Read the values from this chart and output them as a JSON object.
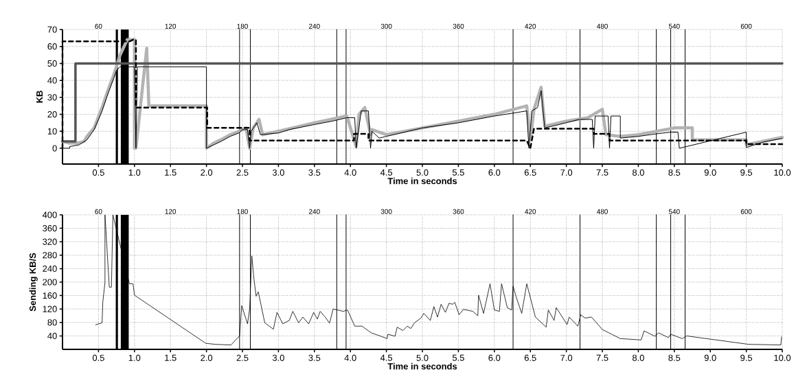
{
  "chart_data": [
    {
      "type": "line",
      "xlabel": "Time in seconds",
      "ylabel": "KB",
      "xlim": [
        0,
        10
      ],
      "ylim": [
        -9.3,
        70
      ],
      "xticks": [
        {
          "value": 0.5,
          "label": "0.5"
        },
        {
          "value": 1,
          "label": "1.0"
        },
        {
          "value": 1.5,
          "label": "1.5"
        },
        {
          "value": 2,
          "label": "2.0"
        },
        {
          "value": 2.5,
          "label": "2.5"
        },
        {
          "value": 3,
          "label": "3.0"
        },
        {
          "value": 3.5,
          "label": "3.5"
        },
        {
          "value": 4,
          "label": "4.0"
        },
        {
          "value": 4.5,
          "label": "4.5"
        },
        {
          "value": 5,
          "label": "5.0"
        },
        {
          "value": 5.5,
          "label": "5.5"
        },
        {
          "value": 6,
          "label": "6.0"
        },
        {
          "value": 6.5,
          "label": "6.5"
        },
        {
          "value": 7,
          "label": "7.0"
        },
        {
          "value": 7.5,
          "label": "7.5"
        },
        {
          "value": 8,
          "label": "8.0"
        },
        {
          "value": 8.5,
          "label": "8.5"
        },
        {
          "value": 9,
          "label": "9.0"
        },
        {
          "value": 9.5,
          "label": "9.5"
        },
        {
          "value": 10,
          "label": "10.0"
        }
      ],
      "yticks": [
        0,
        10,
        20,
        30,
        40,
        50,
        60,
        70
      ],
      "annotations": [
        "60",
        "120",
        "180",
        "240",
        "300",
        "360",
        "420",
        "480",
        "540",
        "600"
      ],
      "grid": true,
      "marker": "none",
      "series": [
        {
          "color": "#b3b3b3",
          "line_style": "solid",
          "x": [
            0,
            0.1,
            0.2,
            0.3,
            0.34,
            0.44,
            0.55,
            0.63,
            0.71,
            0.8,
            0.9,
            1.0,
            1.0,
            1.02,
            1.17,
            1.2,
            2.0,
            2.0,
            2.1,
            2.2,
            2.33,
            2.45,
            2.55,
            2.6,
            2.65,
            2.73,
            2.78,
            3.0,
            3.5,
            3.95,
            4.08,
            4.12,
            4.2,
            4.28,
            4.3,
            4.5,
            5.0,
            5.5,
            6.0,
            6.45,
            6.5,
            6.55,
            6.65,
            6.7,
            7.0,
            7.3,
            7.5,
            7.55,
            7.75,
            8.0,
            8.5,
            8.75,
            8.75,
            9.5,
            9.5,
            10
          ],
          "values": [
            4,
            3,
            3,
            4,
            7,
            12,
            24,
            34,
            43,
            55,
            64,
            64,
            0,
            0,
            59,
            25,
            25,
            0,
            3,
            5,
            8,
            10,
            12,
            0,
            12,
            17,
            8,
            10,
            15,
            19,
            1,
            20,
            24,
            8,
            11,
            8,
            12,
            16,
            20,
            25,
            5,
            23,
            36,
            13,
            16,
            18,
            23,
            8,
            7,
            8,
            12,
            12,
            5,
            5,
            2,
            6.5
          ]
        },
        {
          "color": "#555555",
          "line_style": "solid",
          "x": [
            0,
            0.18,
            0.18,
            10
          ],
          "values": [
            4,
            4,
            50,
            50
          ]
        },
        {
          "color": "#000000",
          "line_style": "dashed",
          "x": [
            0,
            0,
            0.93,
            0.98,
            1.02,
            1.02,
            2.01,
            2.01,
            2.6,
            2.6,
            4.05,
            4.05,
            4.25,
            4.25,
            6.45,
            6.5,
            6.55,
            7.38,
            7.38,
            7.6,
            7.6,
            9.5,
            9.5,
            10
          ],
          "values": [
            0,
            63,
            63,
            64,
            64,
            24,
            24,
            12,
            12,
            4.5,
            4.5,
            8.5,
            8.5,
            4.5,
            4.5,
            0,
            11.5,
            11.5,
            8.5,
            8.5,
            4.5,
            4.5,
            2.4,
            2.4
          ]
        },
        {
          "color": "#000000",
          "line_style": "solid",
          "x": [
            0,
            0.1,
            0.1,
            0.23,
            0.34,
            0.44,
            0.55,
            0.63,
            0.71,
            0.75,
            0.8,
            1.0,
            1.02,
            1.04,
            2.0,
            2.0,
            2.1,
            2.2,
            2.33,
            2.45,
            2.5,
            2.57,
            2.6,
            2.62,
            2.7,
            2.75,
            3.0,
            3.15,
            3.5,
            3.75,
            3.95,
            4.06,
            4.08,
            4.15,
            4.25,
            4.28,
            4.3,
            4.4,
            4.5,
            5.0,
            5.5,
            6.0,
            6.45,
            6.48,
            6.52,
            6.6,
            6.65,
            6.7,
            6.9,
            7.18,
            7.36,
            7.38,
            7.4,
            7.5,
            7.58,
            7.6,
            7.62,
            7.75,
            7.75,
            8.0,
            8.25,
            8.45,
            8.55,
            8.57,
            9.5,
            9.5,
            9.6,
            9.75,
            10
          ],
          "values": [
            0,
            0,
            1,
            2,
            5,
            11,
            22,
            32,
            41,
            46,
            48,
            48,
            0,
            48,
            48,
            0,
            2,
            4,
            7,
            9,
            11,
            11,
            0,
            10,
            15,
            8,
            9,
            11,
            14,
            16,
            18,
            18,
            0,
            22,
            22,
            0,
            10,
            6,
            7,
            12,
            15,
            19,
            22,
            0,
            22,
            24,
            34,
            12,
            14,
            17,
            17,
            0,
            19,
            19,
            19,
            0,
            19,
            19,
            6,
            7,
            8.5,
            9.5,
            9.5,
            0,
            9.5,
            0.4,
            1.8,
            3.8,
            5.8
          ]
        }
      ],
      "ref_lines": [
        {
          "axis": "x",
          "value": 2.46
        },
        {
          "axis": "x",
          "value": 2.61
        },
        {
          "axis": "x",
          "value": 3.81
        },
        {
          "axis": "x",
          "value": 3.94
        },
        {
          "axis": "x",
          "value": 6.26
        },
        {
          "axis": "x",
          "value": 7.19
        },
        {
          "axis": "x",
          "value": 8.25
        },
        {
          "axis": "x",
          "value": 8.45
        },
        {
          "axis": "x",
          "value": 8.65
        }
      ],
      "bands": [
        {
          "axis": "x",
          "from": 0.74,
          "to": 0.77,
          "color": "#000000"
        },
        {
          "axis": "x",
          "from": 0.81,
          "to": 0.92,
          "color": "#000000"
        }
      ]
    },
    {
      "type": "line",
      "xlabel": "Time in seconds",
      "ylabel": "Sending  KB/S",
      "xlim": [
        0,
        10
      ],
      "ylim": [
        0,
        400
      ],
      "xticks": [
        {
          "value": 0.5,
          "label": "0.5"
        },
        {
          "value": 1,
          "label": "1.0"
        },
        {
          "value": 1.5,
          "label": "1.5"
        },
        {
          "value": 2,
          "label": "2.0"
        },
        {
          "value": 2.5,
          "label": "2.5"
        },
        {
          "value": 3,
          "label": "3.0"
        },
        {
          "value": 3.5,
          "label": "3.5"
        },
        {
          "value": 4,
          "label": "4.0"
        },
        {
          "value": 4.5,
          "label": "4.5"
        },
        {
          "value": 5,
          "label": "5.0"
        },
        {
          "value": 5.5,
          "label": "5.5"
        },
        {
          "value": 6,
          "label": "6.0"
        },
        {
          "value": 6.5,
          "label": "6.5"
        },
        {
          "value": 7,
          "label": "7.0"
        },
        {
          "value": 7.5,
          "label": "7.5"
        },
        {
          "value": 8,
          "label": "8.0"
        },
        {
          "value": 8.5,
          "label": "8.5"
        },
        {
          "value": 9,
          "label": "9.0"
        },
        {
          "value": 9.5,
          "label": "9.5"
        },
        {
          "value": 10,
          "label": "10.0"
        }
      ],
      "yticks": [
        40,
        80,
        120,
        160,
        200,
        240,
        280,
        320,
        360,
        400
      ],
      "annotations": [
        "60",
        "120",
        "180",
        "240",
        "300",
        "360",
        "420",
        "480",
        "540",
        "600"
      ],
      "grid": true,
      "marker": "none",
      "series": [
        {
          "color": "#000000",
          "line_style": "solid",
          "x": [
            0.46,
            0.55,
            0.56,
            0.59,
            0.59,
            0.6,
            0.65,
            0.68,
            0.7,
            0.93,
            0.98,
            1.0,
            1.99,
            2.12,
            2.34,
            2.46,
            2.49,
            2.57,
            2.6,
            2.63,
            2.66,
            2.69,
            2.72,
            2.81,
            2.93,
            2.98,
            3.06,
            3.15,
            3.2,
            3.28,
            3.34,
            3.42,
            3.49,
            3.54,
            3.58,
            3.65,
            3.71,
            3.76,
            3.9,
            3.96,
            4.06,
            4.16,
            4.29,
            4.41,
            4.51,
            4.52,
            4.62,
            4.65,
            4.73,
            4.79,
            4.84,
            4.89,
            4.98,
            5.02,
            5.11,
            5.16,
            5.21,
            5.26,
            5.32,
            5.37,
            5.42,
            5.45,
            5.51,
            5.57,
            5.7,
            5.77,
            5.78,
            5.85,
            5.94,
            6.0,
            6.07,
            6.1,
            6.18,
            6.24,
            6.26,
            6.3,
            6.38,
            6.45,
            6.57,
            6.72,
            6.75,
            6.83,
            6.86,
            7.01,
            7.04,
            7.16,
            7.2,
            7.26,
            7.35,
            7.5,
            7.75,
            8.04,
            8.08,
            8.23,
            8.28,
            8.42,
            8.45,
            8.61,
            8.67,
            9.53,
            9.98,
            9.99
          ],
          "values": [
            73,
            79,
            141,
            198,
            400,
            365,
            185,
            185,
            400,
            195,
            195,
            161,
            18,
            15,
            13,
            40,
            130,
            76,
            120,
            278,
            209,
            158,
            171,
            79,
            60,
            110,
            76,
            86,
            113,
            79,
            96,
            76,
            110,
            90,
            113,
            96,
            78,
            120,
            113,
            117,
            69,
            69,
            49,
            40,
            32,
            45,
            39,
            66,
            56,
            69,
            62,
            79,
            93,
            107,
            86,
            127,
            96,
            134,
            110,
            137,
            134,
            140,
            103,
            119,
            113,
            100,
            161,
            107,
            195,
            117,
            113,
            195,
            124,
            117,
            188,
            158,
            107,
            195,
            96,
            66,
            117,
            86,
            124,
            74,
            96,
            69,
            103,
            93,
            96,
            59,
            32,
            28,
            55,
            39,
            49,
            35,
            45,
            32,
            40,
            15,
            13,
            37
          ]
        }
      ],
      "ref_lines": [
        {
          "axis": "x",
          "value": 2.46
        },
        {
          "axis": "x",
          "value": 2.61
        },
        {
          "axis": "x",
          "value": 3.81
        },
        {
          "axis": "x",
          "value": 3.94
        },
        {
          "axis": "x",
          "value": 6.26
        },
        {
          "axis": "x",
          "value": 7.19
        },
        {
          "axis": "x",
          "value": 8.25
        },
        {
          "axis": "x",
          "value": 8.45
        },
        {
          "axis": "x",
          "value": 8.65
        }
      ],
      "bands": [
        {
          "axis": "x",
          "from": 0.74,
          "to": 0.77,
          "color": "#000000"
        },
        {
          "axis": "x",
          "from": 0.81,
          "to": 0.92,
          "color": "#000000"
        }
      ]
    }
  ]
}
